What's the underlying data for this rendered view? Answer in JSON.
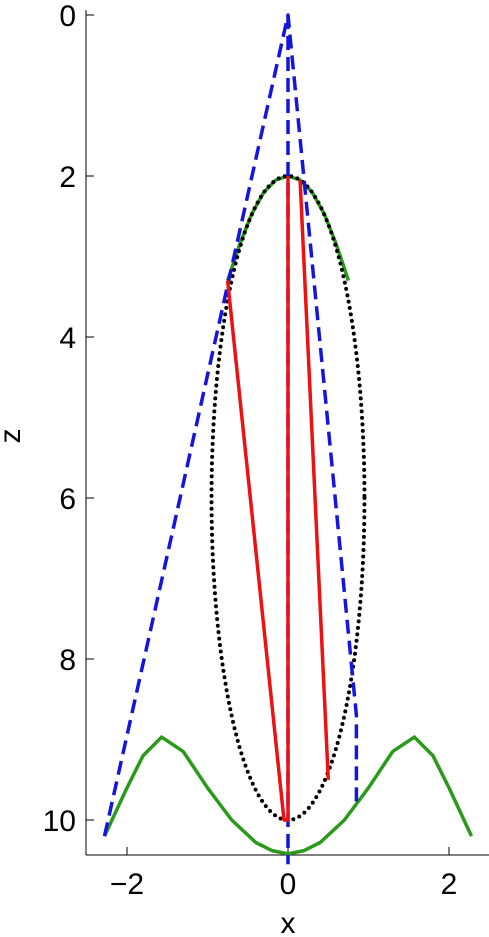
{
  "chart_data": {
    "type": "line",
    "title": "",
    "xlabel": "x",
    "ylabel": "z",
    "xlim": [
      -2.5,
      2.5
    ],
    "ylim": [
      0,
      10.5
    ],
    "y_reversed": true,
    "grid": false,
    "legend": "none",
    "xticks": [
      -2,
      0,
      2
    ],
    "yticks": [
      0,
      2,
      4,
      6,
      8,
      10
    ],
    "series": [
      {
        "style": "solid",
        "color": "#2a9a1a",
        "x": [
          -0.75,
          -0.6,
          -0.45,
          -0.3,
          -0.15,
          0.0,
          0.15,
          0.3,
          0.45,
          0.6,
          0.75
        ],
        "y": [
          3.3,
          2.85,
          2.47,
          2.2,
          2.05,
          2.0,
          2.05,
          2.2,
          2.47,
          2.85,
          3.3
        ]
      },
      {
        "style": "solid",
        "color": "#2a9a1a",
        "x": [
          -2.28,
          -2.0,
          -1.8,
          -1.57,
          -1.3,
          -1.0,
          -0.7,
          -0.4,
          -0.2,
          0.0,
          0.2,
          0.4,
          0.7,
          1.0,
          1.3,
          1.57,
          1.8,
          2.0,
          2.28
        ],
        "y": [
          10.2,
          9.6,
          9.2,
          8.97,
          9.15,
          9.6,
          10.0,
          10.28,
          10.38,
          10.42,
          10.38,
          10.28,
          10.0,
          9.6,
          9.15,
          8.97,
          9.2,
          9.6,
          10.2
        ]
      },
      {
        "style": "dotted",
        "color": "#000000",
        "cx": 0.0,
        "cz": 6.0,
        "rx": 0.95,
        "rz": 4.0
      },
      {
        "style": "dashed",
        "color": "#1515dd",
        "x": [
          -2.28,
          0.0,
          0.85,
          0.85
        ],
        "y": [
          10.2,
          0.0,
          8.7,
          9.8
        ]
      },
      {
        "style": "dashed",
        "color": "#1515dd",
        "x": [
          0.0,
          0.0
        ],
        "y": [
          0.0,
          10.55
        ]
      },
      {
        "style": "solid",
        "color": "#ee1111",
        "x": [
          -0.75,
          -0.05,
          0.0,
          0.0
        ],
        "y": [
          3.3,
          10.0,
          10.0,
          2.0
        ]
      },
      {
        "style": "solid",
        "color": "#ee1111",
        "x": [
          0.15,
          0.5
        ],
        "y": [
          2.05,
          9.5
        ]
      }
    ]
  }
}
